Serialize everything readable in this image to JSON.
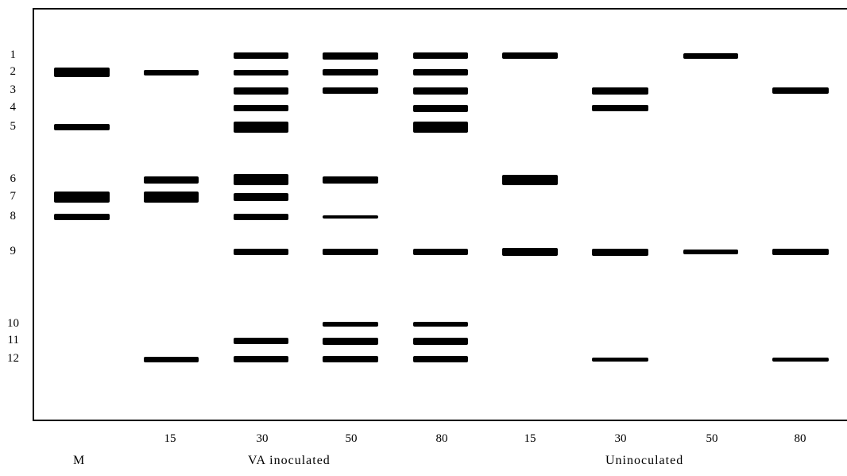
{
  "band_numbers": [
    "1",
    "2",
    "3",
    "4",
    "5",
    "6",
    "7",
    "8",
    "9",
    "10",
    "11",
    "12"
  ],
  "lanes": [
    {
      "id": "M",
      "label": "",
      "bands": [
        2,
        5,
        7,
        8
      ]
    },
    {
      "id": "VA-15",
      "label": "15",
      "bands": [
        2,
        6,
        7,
        12
      ]
    },
    {
      "id": "VA-30",
      "label": "30",
      "bands": [
        1,
        2,
        3,
        4,
        5,
        6,
        7,
        8,
        9,
        11,
        12
      ]
    },
    {
      "id": "VA-50",
      "label": "50",
      "bands": [
        1,
        2,
        3,
        6,
        8,
        9,
        10,
        11,
        12
      ]
    },
    {
      "id": "VA-80",
      "label": "80",
      "bands": [
        1,
        2,
        3,
        4,
        5,
        9,
        10,
        11,
        12
      ]
    },
    {
      "id": "Uninoc-15",
      "label": "15",
      "bands": [
        1,
        6,
        9
      ]
    },
    {
      "id": "Uninoc-30",
      "label": "30",
      "bands": [
        3,
        4,
        9,
        12
      ]
    },
    {
      "id": "Uninoc-50",
      "label": "50",
      "bands": [
        1,
        9
      ]
    },
    {
      "id": "Uninoc-80",
      "label": "80",
      "bands": [
        3,
        9,
        12
      ]
    }
  ],
  "groups": {
    "marker": "M",
    "inoculated": "VA inoculated",
    "uninoculated": "Uninoculated"
  }
}
